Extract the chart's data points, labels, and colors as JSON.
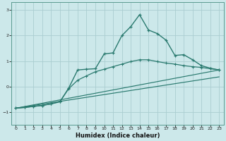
{
  "xlabel": "Humidex (Indice chaleur)",
  "bg_color": "#cce8ea",
  "grid_color": "#aacdd0",
  "line_color": "#2a7a6f",
  "spine_color": "#5a9a90",
  "xlim": [
    -0.5,
    23.5
  ],
  "ylim": [
    -1.5,
    3.3
  ],
  "yticks": [
    -1,
    0,
    1,
    2,
    3
  ],
  "xticks": [
    0,
    1,
    2,
    3,
    4,
    5,
    6,
    7,
    8,
    9,
    10,
    11,
    12,
    13,
    14,
    15,
    16,
    17,
    18,
    19,
    20,
    21,
    22,
    23
  ],
  "line1_x": [
    0,
    1,
    2,
    3,
    4,
    5,
    6,
    7,
    8,
    9,
    10,
    11,
    12,
    13,
    14,
    15,
    16,
    17,
    18,
    19,
    20,
    21,
    22,
    23
  ],
  "line1_y": [
    -0.85,
    -0.82,
    -0.78,
    -0.74,
    -0.68,
    -0.6,
    -0.05,
    0.65,
    0.68,
    0.7,
    1.28,
    1.32,
    2.0,
    2.35,
    2.82,
    2.22,
    2.08,
    1.82,
    1.22,
    1.25,
    1.05,
    0.82,
    0.72,
    0.65
  ],
  "line2_x": [
    0,
    1,
    2,
    3,
    4,
    5,
    6,
    7,
    8,
    9,
    10,
    11,
    12,
    13,
    14,
    15,
    16,
    17,
    18,
    19,
    20,
    21,
    22,
    23
  ],
  "line2_y": [
    -0.85,
    -0.82,
    -0.78,
    -0.74,
    -0.68,
    -0.58,
    -0.08,
    0.25,
    0.42,
    0.58,
    0.68,
    0.78,
    0.88,
    0.98,
    1.05,
    1.05,
    0.98,
    0.92,
    0.88,
    0.82,
    0.78,
    0.75,
    0.7,
    0.65
  ],
  "line3_x": [
    0,
    23
  ],
  "line3_y": [
    -0.85,
    0.65
  ],
  "line4_x": [
    0,
    23
  ],
  "line4_y": [
    -0.85,
    0.38
  ]
}
